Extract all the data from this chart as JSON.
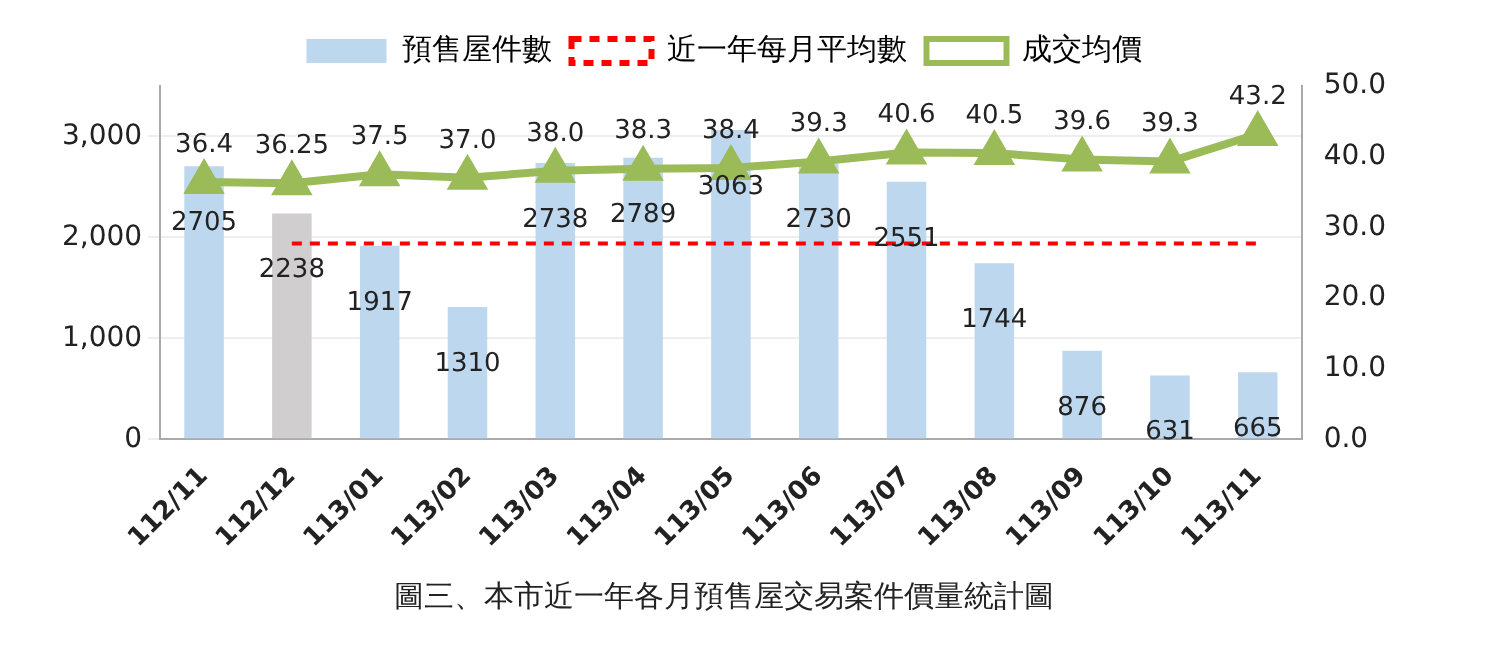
{
  "chart_data": {
    "type": "bar",
    "title": "圖三、本市近一年各月預售屋交易案件價量統計圖",
    "categories": [
      "112/11",
      "112/12",
      "113/01",
      "113/02",
      "113/03",
      "113/04",
      "113/05",
      "113/06",
      "113/07",
      "113/08",
      "113/09",
      "113/10",
      "113/11"
    ],
    "series": [
      {
        "name": "預售屋件數",
        "color": "#bdd7ee",
        "colors": [
          "#bdd7ee",
          "#d0cece",
          "#bdd7ee",
          "#bdd7ee",
          "#bdd7ee",
          "#bdd7ee",
          "#bdd7ee",
          "#bdd7ee",
          "#bdd7ee",
          "#bdd7ee",
          "#bdd7ee",
          "#bdd7ee",
          "#bdd7ee"
        ],
        "values": [
          2705,
          2238,
          1917,
          1310,
          2738,
          2789,
          3063,
          2730,
          2551,
          1744,
          876,
          631,
          665
        ],
        "value_labels": [
          "2705",
          "2238",
          "1917",
          "1310",
          "2738",
          "2789",
          "3063",
          "2730",
          "2551",
          "1744",
          "876",
          "631",
          "665"
        ]
      },
      {
        "name": "近一年每月平均數",
        "type": "line",
        "color": "#ff0000",
        "line_style": "dashed",
        "marker": "none",
        "values": [
          null,
          1940,
          1940,
          1940,
          1940,
          1940,
          1940,
          1940,
          1940,
          1940,
          1940,
          1940,
          1940
        ]
      },
      {
        "name": "成交均價",
        "type": "line",
        "axis": "y2",
        "color": "#9bbb59",
        "marker": "triangle",
        "line_style": "solid",
        "values": [
          36.4,
          36.25,
          37.5,
          37.0,
          38.0,
          38.3,
          38.4,
          39.3,
          40.6,
          40.5,
          39.6,
          39.3,
          43.2
        ],
        "value_labels": [
          "36.4",
          "36.25",
          "37.5",
          "37.0",
          "38.0",
          "38.3",
          "38.4",
          "39.3",
          "40.6",
          "40.5",
          "39.6",
          "39.3",
          "43.2"
        ]
      }
    ],
    "ylim": [
      0,
      3500
    ],
    "yticks": [
      {
        "value": 0,
        "label": "0"
      },
      {
        "value": 1000,
        "label": "1,000"
      },
      {
        "value": 2000,
        "label": "2,000"
      },
      {
        "value": 3000,
        "label": "3,000"
      }
    ],
    "y2lim": [
      0,
      50
    ],
    "y2ticks": [
      {
        "value": 0,
        "label": "0.0"
      },
      {
        "value": 10,
        "label": "10.0"
      },
      {
        "value": 20,
        "label": "20.0"
      },
      {
        "value": 30,
        "label": "30.0"
      },
      {
        "value": 40,
        "label": "40.0"
      },
      {
        "value": 50,
        "label": "50.0"
      }
    ],
    "grid": "y",
    "legend": "top"
  }
}
